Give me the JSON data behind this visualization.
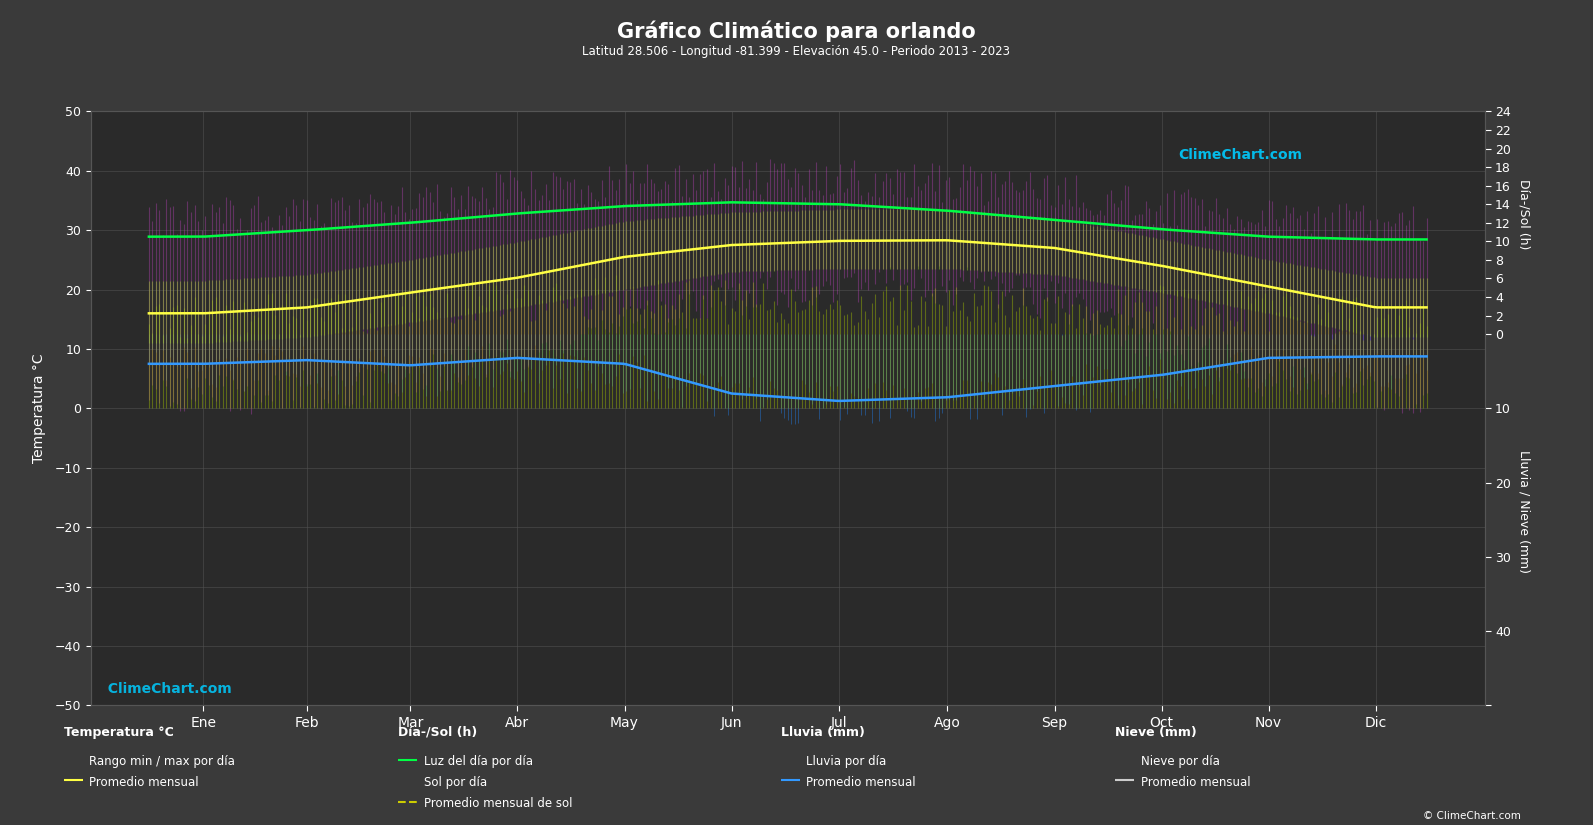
{
  "title": "Gráfico Climático para orlando",
  "subtitle": "Latitud 28.506 - Longitud -81.399 - Elevación 45.0 - Periodo 2013 - 2023",
  "months": [
    "Ene",
    "Feb",
    "Mar",
    "Abr",
    "May",
    "Jun",
    "Jul",
    "Ago",
    "Sep",
    "Oct",
    "Nov",
    "Dic"
  ],
  "temp_avg": [
    16.0,
    17.0,
    19.5,
    22.0,
    25.5,
    27.5,
    28.2,
    28.3,
    27.0,
    24.0,
    20.5,
    17.0
  ],
  "temp_max_avg": [
    21.5,
    22.5,
    25.0,
    28.0,
    31.5,
    33.0,
    33.5,
    33.5,
    32.0,
    28.5,
    25.0,
    22.0
  ],
  "temp_min_avg": [
    11.0,
    12.0,
    14.5,
    17.0,
    20.0,
    23.0,
    23.5,
    23.5,
    22.5,
    19.5,
    16.0,
    12.0
  ],
  "temp_max_daily_max": [
    32.0,
    33.0,
    35.0,
    37.0,
    38.0,
    38.5,
    38.5,
    38.0,
    37.0,
    34.0,
    32.0,
    31.0
  ],
  "temp_min_daily_min": [
    2.0,
    3.0,
    5.0,
    9.0,
    14.0,
    19.0,
    21.0,
    21.0,
    18.0,
    11.0,
    5.0,
    2.5
  ],
  "daylight_avg": [
    10.5,
    11.2,
    12.0,
    13.0,
    13.8,
    14.2,
    14.0,
    13.3,
    12.3,
    11.3,
    10.5,
    10.2
  ],
  "sunshine_avg": [
    6.5,
    7.0,
    7.5,
    8.0,
    8.5,
    7.8,
    7.5,
    7.8,
    7.0,
    7.5,
    7.0,
    6.5
  ],
  "rain_daily_avg": [
    3.2,
    3.0,
    3.5,
    2.8,
    3.5,
    6.8,
    7.5,
    7.0,
    6.0,
    4.5,
    2.8,
    2.5
  ],
  "rain_monthly_avg": [
    4.0,
    3.5,
    4.2,
    3.2,
    4.0,
    8.0,
    9.0,
    8.5,
    7.0,
    5.5,
    3.2,
    3.0
  ],
  "bg_color": "#3a3a3a",
  "plot_bg_color": "#2a2a2a",
  "text_color": "#ffffff",
  "grid_color": "#555555",
  "temp_fill_color": "#cc44cc",
  "temp_avg_fill_color": "#99bb33",
  "temp_avg_line_color": "#ffff44",
  "daylight_line_color": "#00ff44",
  "sunshine_fill_color": "#aacc00",
  "rain_bar_color": "#2277dd",
  "rain_line_color": "#3399ff",
  "snow_bar_color": "#aaaaaa",
  "snow_line_color": "#cccccc",
  "ylim_left": [
    -50,
    50
  ],
  "ylim_right": [
    -40,
    24
  ]
}
